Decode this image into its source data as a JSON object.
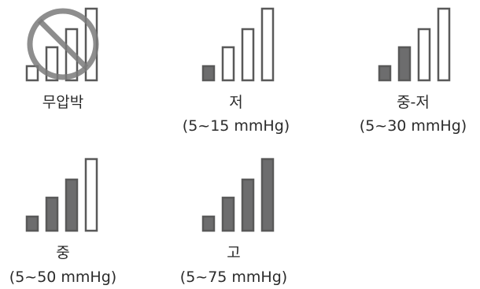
{
  "levels": [
    {
      "name": "무압박",
      "range": "",
      "filled": 0,
      "off": true
    },
    {
      "name": "저",
      "range": "(5~15 mmHg)",
      "filled": 1,
      "off": false
    },
    {
      "name": "중-저",
      "range": "(5~30 mmHg)",
      "filled": 2,
      "off": false
    },
    {
      "name": "중",
      "range": "(5~50 mmHg)",
      "filled": 3,
      "off": false
    },
    {
      "name": "고",
      "range": "(5~75 mmHg)",
      "filled": 4,
      "off": false
    }
  ],
  "colors": {
    "bar_fill": "#6d6d6e",
    "bar_stroke": "#595959",
    "text": "#2b2b2b",
    "prohibit": "#7a7a7a"
  },
  "icons": {
    "bars": "signal-bars-icon",
    "prohibit": "prohibition-icon"
  }
}
